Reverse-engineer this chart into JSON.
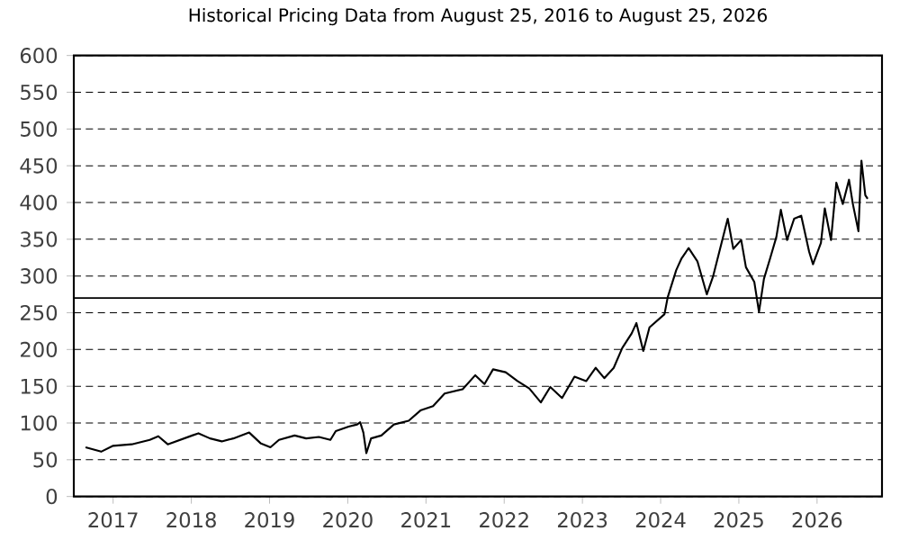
{
  "chart_data": {
    "type": "line",
    "title": "Historical Pricing Data from August 25, 2016 to August 25, 2026",
    "x": [
      "2016-08-25",
      "2016-11-06",
      "2017-01-01",
      "2017-03-29",
      "2017-06-21",
      "2017-07-31",
      "2017-09-13",
      "2018-01-05",
      "2018-02-03",
      "2018-03-29",
      "2018-05-23",
      "2018-07-16",
      "2018-09-28",
      "2018-11-22",
      "2019-01-05",
      "2019-02-14",
      "2019-04-28",
      "2019-06-21",
      "2019-08-19",
      "2019-10-12",
      "2019-11-06",
      "2020-01-05",
      "2020-02-14",
      "2020-02-28",
      "2020-03-14",
      "2020-03-28",
      "2020-04-19",
      "2020-06-06",
      "2020-08-04",
      "2020-10-12",
      "2020-12-06",
      "2021-02-03",
      "2021-03-29",
      "2021-06-21",
      "2021-08-19",
      "2021-10-01",
      "2021-11-10",
      "2022-01-08",
      "2022-03-04",
      "2022-04-28",
      "2022-06-21",
      "2022-08-04",
      "2022-09-28",
      "2022-11-25",
      "2023-01-19",
      "2023-03-04",
      "2023-04-13",
      "2023-05-27",
      "2023-07-06",
      "2023-08-19",
      "2023-09-10",
      "2023-10-12",
      "2023-11-10",
      "2024-01-19",
      "2024-02-03",
      "2024-03-14",
      "2024-04-08",
      "2024-05-11",
      "2024-06-21",
      "2024-08-04",
      "2024-09-02",
      "2024-10-12",
      "2024-11-10",
      "2024-12-06",
      "2025-01-12",
      "2025-02-03",
      "2025-03-14",
      "2025-04-05",
      "2025-04-28",
      "2025-05-27",
      "2025-06-25",
      "2025-07-16",
      "2025-08-14",
      "2025-09-16",
      "2025-10-19",
      "2025-11-25",
      "2025-12-13",
      "2026-01-19",
      "2026-02-06",
      "2026-03-07",
      "2026-04-01",
      "2026-05-01",
      "2026-05-30",
      "2026-06-17",
      "2026-07-13",
      "2026-07-27",
      "2026-08-14",
      "2026-08-25"
    ],
    "series": [
      {
        "color": "#000000",
        "values": [
          67,
          61,
          69,
          71,
          77,
          82,
          71,
          83,
          86,
          79,
          75,
          79,
          87,
          72,
          67,
          77,
          83,
          79,
          81,
          77,
          89,
          95,
          98,
          101,
          87,
          59,
          79,
          83,
          98,
          103,
          117,
          123,
          140,
          146,
          165,
          153,
          173,
          169,
          157,
          147,
          128,
          149,
          134,
          163,
          157,
          175,
          161,
          175,
          202,
          222,
          236,
          198,
          230,
          248,
          271,
          308,
          324,
          338,
          320,
          275,
          299,
          345,
          378,
          337,
          349,
          312,
          292,
          251,
          296,
          324,
          353,
          390,
          349,
          378,
          382,
          333,
          316,
          345,
          392,
          349,
          427,
          398,
          431,
          398,
          361,
          457,
          410,
          405
        ]
      }
    ],
    "xlim": [
      "2016-07-01",
      "2026-10-31"
    ],
    "xticks": [
      {
        "value": "2017-01-01",
        "label": "2017"
      },
      {
        "value": "2018-01-01",
        "label": "2018"
      },
      {
        "value": "2019-01-01",
        "label": "2019"
      },
      {
        "value": "2020-01-01",
        "label": "2020"
      },
      {
        "value": "2021-01-01",
        "label": "2021"
      },
      {
        "value": "2022-01-01",
        "label": "2022"
      },
      {
        "value": "2023-01-01",
        "label": "2023"
      },
      {
        "value": "2024-01-01",
        "label": "2024"
      },
      {
        "value": "2025-01-01",
        "label": "2025"
      },
      {
        "value": "2026-01-01",
        "label": "2026"
      }
    ],
    "ylim": [
      0,
      600
    ],
    "yticks": [
      0,
      50,
      100,
      150,
      200,
      250,
      300,
      350,
      400,
      450,
      500,
      550,
      600
    ],
    "grid": "y",
    "marker": "none",
    "line_style": "solid",
    "ref_lines": [
      {
        "axis": "y",
        "value": 270,
        "color": "#000000",
        "line_style": "solid"
      }
    ]
  }
}
